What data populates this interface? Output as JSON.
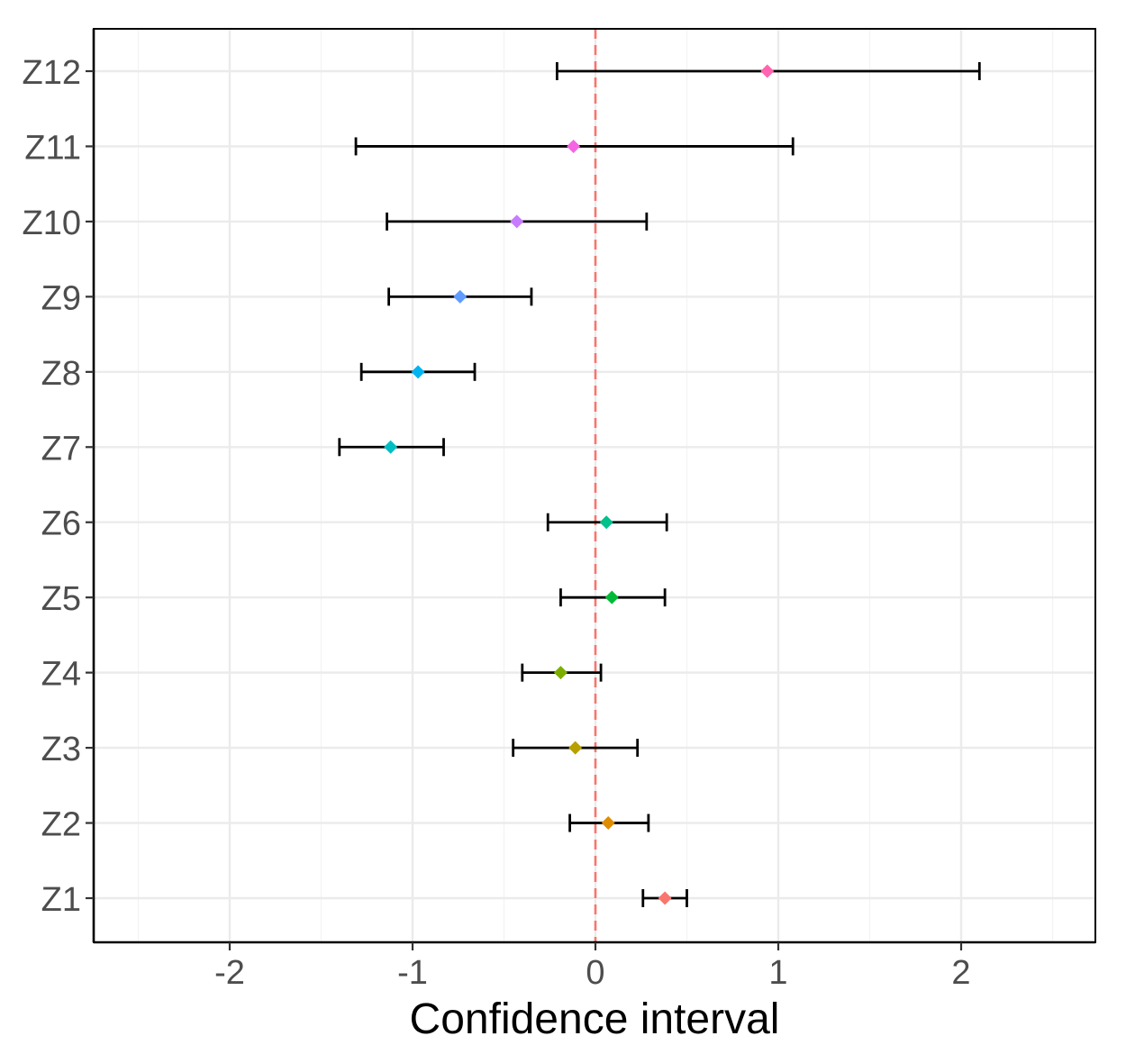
{
  "chart_data": {
    "type": "forest",
    "title": "",
    "xlabel": "Confidence interval",
    "ylabel": "",
    "xlim": [
      -2.7,
      2.75
    ],
    "x_ticks": [
      -2,
      -1,
      0,
      1,
      2
    ],
    "x_tick_labels": [
      "-2",
      "-1",
      "0",
      "1",
      "2"
    ],
    "x_minor_ticks": [
      -2.5,
      -1.5,
      -0.5,
      0.5,
      1.5,
      2.5
    ],
    "reference_line": {
      "x": 0,
      "style": "dashed",
      "color": "#F8766D"
    },
    "grid": true,
    "legend": "none",
    "series": [
      {
        "name": "Z1",
        "estimate": 0.38,
        "lower": 0.26,
        "upper": 0.5,
        "color": "#F8766D"
      },
      {
        "name": "Z2",
        "estimate": 0.07,
        "lower": -0.14,
        "upper": 0.29,
        "color": "#DE8C00"
      },
      {
        "name": "Z3",
        "estimate": -0.11,
        "lower": -0.45,
        "upper": 0.23,
        "color": "#B79F00"
      },
      {
        "name": "Z4",
        "estimate": -0.19,
        "lower": -0.4,
        "upper": 0.03,
        "color": "#7CAE00"
      },
      {
        "name": "Z5",
        "estimate": 0.09,
        "lower": -0.19,
        "upper": 0.38,
        "color": "#00BA38"
      },
      {
        "name": "Z6",
        "estimate": 0.06,
        "lower": -0.26,
        "upper": 0.39,
        "color": "#00C08B"
      },
      {
        "name": "Z7",
        "estimate": -1.12,
        "lower": -1.4,
        "upper": -0.83,
        "color": "#00BFC4"
      },
      {
        "name": "Z8",
        "estimate": -0.97,
        "lower": -1.28,
        "upper": -0.66,
        "color": "#00B4F0"
      },
      {
        "name": "Z9",
        "estimate": -0.74,
        "lower": -1.13,
        "upper": -0.35,
        "color": "#619CFF"
      },
      {
        "name": "Z10",
        "estimate": -0.43,
        "lower": -1.14,
        "upper": 0.28,
        "color": "#C77CFF"
      },
      {
        "name": "Z11",
        "estimate": -0.12,
        "lower": -1.31,
        "upper": 1.08,
        "color": "#F564E3"
      },
      {
        "name": "Z12",
        "estimate": 0.94,
        "lower": -0.21,
        "upper": 2.1,
        "color": "#FF64B0"
      }
    ]
  }
}
